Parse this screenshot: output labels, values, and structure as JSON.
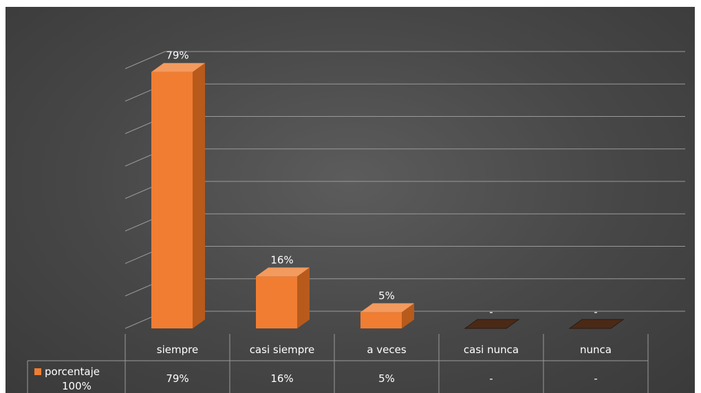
{
  "chart_data": {
    "type": "bar",
    "categories": [
      "siempre",
      "casi siempre",
      "a veces",
      "casi nunca",
      "nunca"
    ],
    "values": [
      79,
      16,
      5,
      0,
      0
    ],
    "data_labels": [
      "79%",
      "16%",
      "5%",
      "-",
      "-"
    ],
    "series": [
      {
        "name": "porcentaje",
        "values": [
          79,
          16,
          5,
          0,
          0
        ]
      }
    ],
    "table": {
      "legend_label": "porcentaje",
      "legend_value": "100%",
      "row_values": [
        "79%",
        "16%",
        "5%",
        "-",
        "-"
      ]
    },
    "ylim": [
      0,
      80
    ],
    "grid": true,
    "legend": "data-table",
    "colors": {
      "bar": "#f07d32",
      "bar_side": "#b85a1c",
      "bar_top": "#f39a5e",
      "background": "#474747",
      "grid": "#9a9a9a",
      "text": "#ffffff"
    }
  }
}
